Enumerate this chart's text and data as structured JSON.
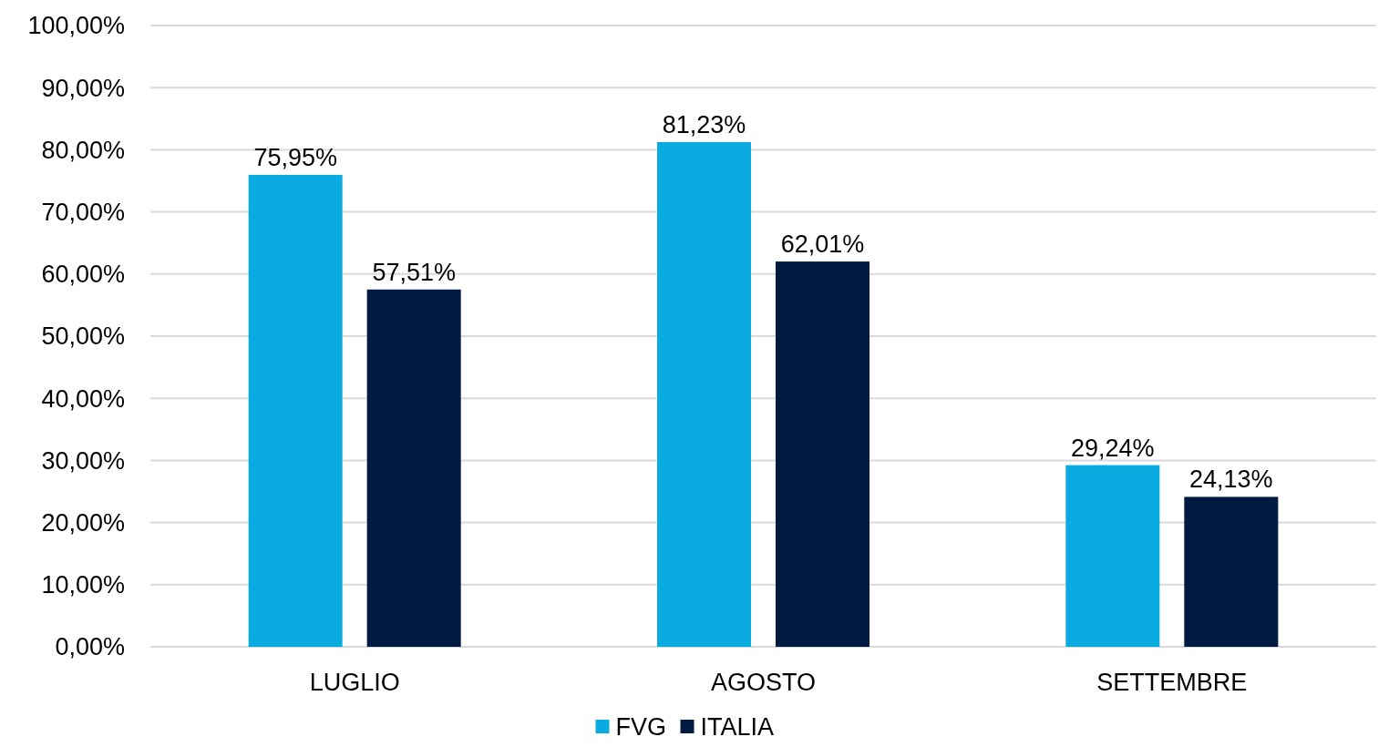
{
  "chart_data": {
    "type": "bar",
    "categories": [
      "LUGLIO",
      "AGOSTO",
      "SETTEMBRE"
    ],
    "series": [
      {
        "name": "FVG",
        "color": "#0aabe0",
        "values": [
          75.95,
          81.23,
          29.24
        ],
        "value_labels": [
          "75,95%",
          "81,23%",
          "29,24%"
        ]
      },
      {
        "name": "ITALIA",
        "color": "#001a42",
        "values": [
          57.51,
          62.01,
          24.13
        ],
        "value_labels": [
          "57,51%",
          "62,01%",
          "24,13%"
        ]
      }
    ],
    "ylim": [
      0,
      100
    ],
    "yticks": [
      {
        "value": 0,
        "label": "0,00%"
      },
      {
        "value": 10,
        "label": "10,00%"
      },
      {
        "value": 20,
        "label": "20,00%"
      },
      {
        "value": 30,
        "label": "30,00%"
      },
      {
        "value": 40,
        "label": "40,00%"
      },
      {
        "value": 50,
        "label": "50,00%"
      },
      {
        "value": 60,
        "label": "60,00%"
      },
      {
        "value": 70,
        "label": "70,00%"
      },
      {
        "value": 80,
        "label": "80,00%"
      },
      {
        "value": 90,
        "label": "90,00%"
      },
      {
        "value": 100,
        "label": "100,00%"
      }
    ],
    "grid": "y",
    "legend": "bottom"
  }
}
